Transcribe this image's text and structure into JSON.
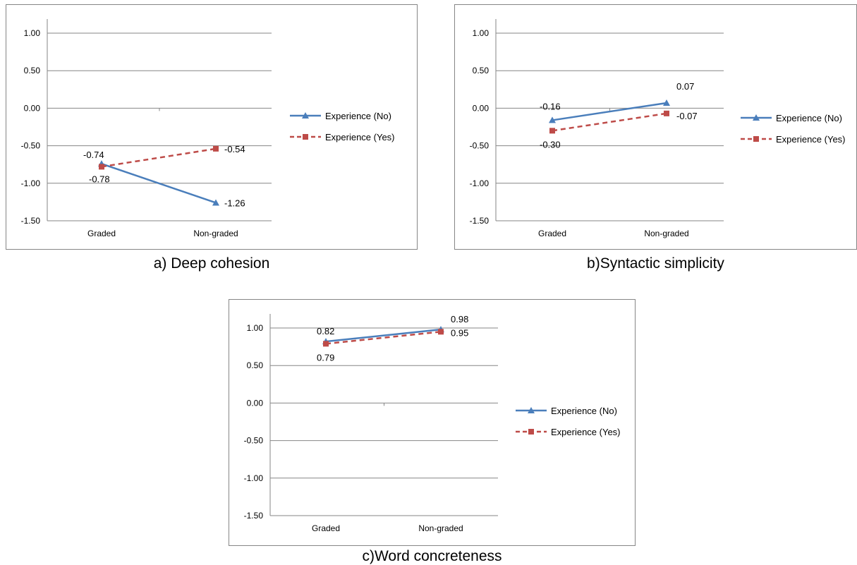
{
  "chart_data": [
    {
      "type": "line",
      "title": "a) Deep cohesion",
      "categories": [
        "Graded",
        "Non-graded"
      ],
      "ylim": [
        -1.5,
        1.0
      ],
      "yticks": [
        "1.00",
        "0.50",
        "0.00",
        "-0.50",
        "-1.00",
        "-1.50"
      ],
      "grid": true,
      "legend": "right",
      "series": [
        {
          "name": "Experience (No)",
          "values": [
            -0.74,
            -1.26
          ],
          "labels": [
            "-0.74",
            "-1.26"
          ],
          "color": "#4A7EBB",
          "marker": "triangle",
          "dash": false
        },
        {
          "name": "Experience (Yes)",
          "values": [
            -0.78,
            -0.54
          ],
          "labels": [
            "-0.78",
            "-0.54"
          ],
          "color": "#BE4B48",
          "marker": "square",
          "dash": true
        }
      ]
    },
    {
      "type": "line",
      "title": "b)Syntactic simplicity",
      "categories": [
        "Graded",
        "Non-graded"
      ],
      "ylim": [
        -1.5,
        1.0
      ],
      "yticks": [
        "1.00",
        "0.50",
        "0.00",
        "-0.50",
        "-1.00",
        "-1.50"
      ],
      "grid": true,
      "legend": "right",
      "series": [
        {
          "name": "Experience (No)",
          "values": [
            -0.16,
            0.07
          ],
          "labels": [
            "-0.16",
            "0.07"
          ],
          "color": "#4A7EBB",
          "marker": "triangle",
          "dash": false
        },
        {
          "name": "Experience (Yes)",
          "values": [
            -0.3,
            -0.07
          ],
          "labels": [
            "-0.30",
            "-0.07"
          ],
          "color": "#BE4B48",
          "marker": "square",
          "dash": true
        }
      ]
    },
    {
      "type": "line",
      "title": "c)Word concreteness",
      "categories": [
        "Graded",
        "Non-graded"
      ],
      "ylim": [
        -1.5,
        1.0
      ],
      "yticks": [
        "1.00",
        "0.50",
        "0.00",
        "-0.50",
        "-1.00",
        "-1.50"
      ],
      "grid": true,
      "legend": "right",
      "series": [
        {
          "name": "Experience (No)",
          "values": [
            0.82,
            0.98
          ],
          "labels": [
            "0.82",
            "0.98"
          ],
          "color": "#4A7EBB",
          "marker": "triangle",
          "dash": false
        },
        {
          "name": "Experience (Yes)",
          "values": [
            0.79,
            0.95
          ],
          "labels": [
            "0.79",
            "0.95"
          ],
          "color": "#BE4B48",
          "marker": "square",
          "dash": true
        }
      ]
    }
  ]
}
